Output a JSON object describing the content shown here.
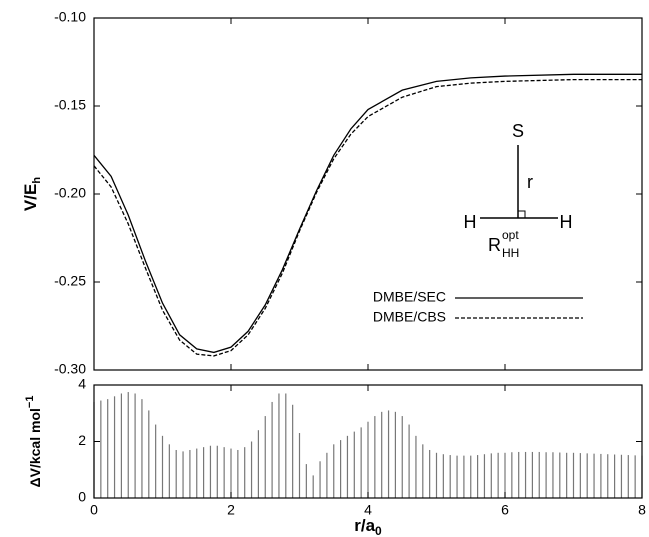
{
  "chart_data": [
    {
      "type": "line",
      "ylabel": [
        "V/E",
        "h"
      ],
      "x": [
        0,
        0.25,
        0.5,
        0.75,
        1.0,
        1.25,
        1.5,
        1.75,
        2.0,
        2.25,
        2.5,
        2.75,
        3.0,
        3.25,
        3.5,
        3.75,
        4.0,
        4.5,
        5.0,
        5.5,
        6.0,
        7.0,
        8.0
      ],
      "series": [
        {
          "name": "DMBE/SEC",
          "color": "#000000",
          "dash": false,
          "values": [
            -0.178,
            -0.19,
            -0.212,
            -0.238,
            -0.262,
            -0.28,
            -0.288,
            -0.29,
            -0.287,
            -0.278,
            -0.263,
            -0.243,
            -0.22,
            -0.198,
            -0.178,
            -0.163,
            -0.152,
            -0.141,
            -0.136,
            -0.134,
            -0.133,
            -0.132,
            -0.132
          ]
        },
        {
          "name": "DMBE/CBS",
          "color": "#000000",
          "dash": true,
          "values": [
            -0.184,
            -0.196,
            -0.217,
            -0.242,
            -0.266,
            -0.283,
            -0.291,
            -0.292,
            -0.289,
            -0.28,
            -0.265,
            -0.245,
            -0.221,
            -0.199,
            -0.18,
            -0.166,
            -0.156,
            -0.145,
            -0.139,
            -0.137,
            -0.136,
            -0.135,
            -0.135
          ]
        }
      ],
      "xlim": [
        0,
        8
      ],
      "xticks": [
        0,
        2,
        4,
        6,
        8
      ],
      "ylim": [
        -0.3,
        -0.1
      ],
      "yticks": [
        {
          "value": -0.3,
          "label": "-0.30"
        },
        {
          "value": -0.25,
          "label": "-0.25"
        },
        {
          "value": -0.2,
          "label": "-0.20"
        },
        {
          "value": -0.15,
          "label": "-0.15"
        },
        {
          "value": -0.1,
          "label": "-0.10"
        }
      ],
      "legend": "lower-right",
      "inset": {
        "top_atom": "S",
        "bond": "r",
        "left_atom": "H",
        "right_atom": "H",
        "distance": [
          "R",
          "opt",
          "HH"
        ]
      }
    },
    {
      "type": "bar",
      "xlabel": [
        "r/a",
        "0"
      ],
      "ylabel": [
        "ΔV/kcal mol",
        "−1"
      ],
      "color": "#777777",
      "x": [
        0,
        0.1,
        0.2,
        0.3,
        0.4,
        0.5,
        0.6,
        0.7,
        0.8,
        0.9,
        1.0,
        1.1,
        1.2,
        1.3,
        1.4,
        1.5,
        1.6,
        1.7,
        1.8,
        1.9,
        2.0,
        2.1,
        2.2,
        2.3,
        2.4,
        2.5,
        2.6,
        2.7,
        2.8,
        2.9,
        3.0,
        3.1,
        3.2,
        3.3,
        3.4,
        3.5,
        3.6,
        3.7,
        3.8,
        3.9,
        4.0,
        4.1,
        4.2,
        4.3,
        4.4,
        4.5,
        4.6,
        4.7,
        4.8,
        4.9,
        5.0,
        5.1,
        5.2,
        5.3,
        5.4,
        5.5,
        5.6,
        5.7,
        5.8,
        5.9,
        6.0,
        6.1,
        6.2,
        6.3,
        6.4,
        6.5,
        6.6,
        6.7,
        6.8,
        6.9,
        7.0,
        7.1,
        7.2,
        7.3,
        7.4,
        7.5,
        7.6,
        7.7,
        7.8,
        7.9,
        8.0
      ],
      "values": [
        3.4,
        3.45,
        3.5,
        3.6,
        3.7,
        3.75,
        3.7,
        3.5,
        3.1,
        2.6,
        2.2,
        1.9,
        1.7,
        1.65,
        1.7,
        1.75,
        1.8,
        1.85,
        1.85,
        1.8,
        1.75,
        1.7,
        1.8,
        2.0,
        2.4,
        2.9,
        3.4,
        3.7,
        3.7,
        3.3,
        2.3,
        1.2,
        0.8,
        1.3,
        1.6,
        1.9,
        2.05,
        2.2,
        2.35,
        2.5,
        2.7,
        2.9,
        3.05,
        3.1,
        3.05,
        2.9,
        2.6,
        2.2,
        1.9,
        1.7,
        1.6,
        1.55,
        1.52,
        1.5,
        1.5,
        1.5,
        1.52,
        1.55,
        1.58,
        1.6,
        1.6,
        1.62,
        1.63,
        1.63,
        1.63,
        1.63,
        1.62,
        1.62,
        1.61,
        1.6,
        1.6,
        1.59,
        1.58,
        1.57,
        1.56,
        1.55,
        1.54,
        1.53,
        1.52,
        1.51,
        1.5
      ],
      "xlim": [
        0,
        8
      ],
      "xticks": [
        0,
        2,
        4,
        6,
        8
      ],
      "ylim": [
        0,
        4
      ],
      "yticks": [
        0,
        2,
        4
      ]
    }
  ]
}
